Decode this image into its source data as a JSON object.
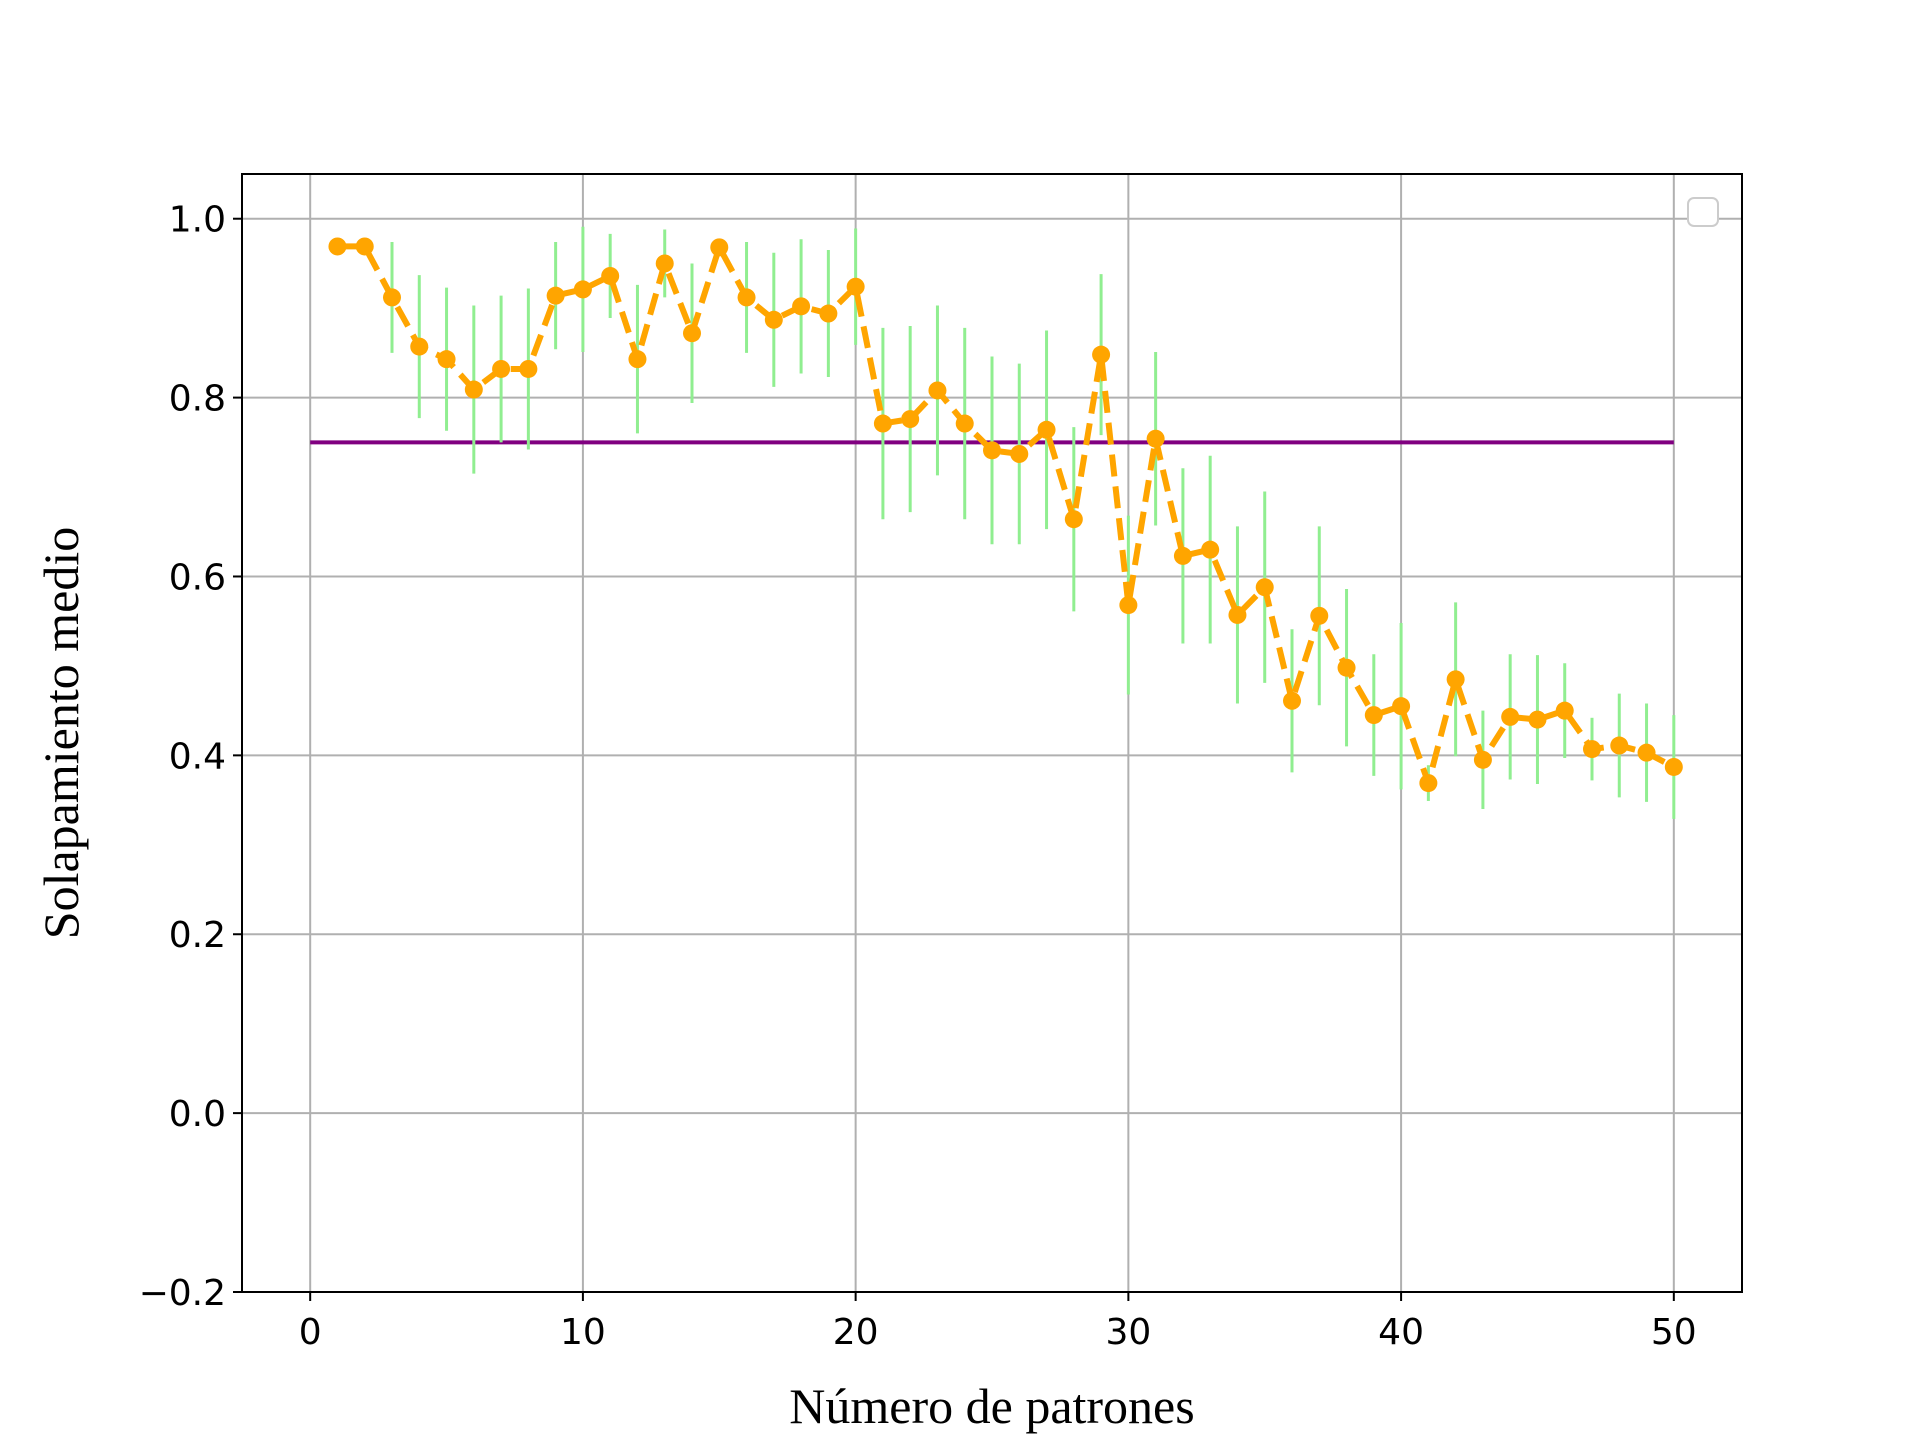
{
  "chart_data": {
    "type": "line",
    "title": "",
    "xlabel": "Número de patrones",
    "ylabel": "Solapamiento medio",
    "xlim": [
      -2.5,
      52.5
    ],
    "ylim": [
      -0.2,
      1.05
    ],
    "grid": true,
    "legend": {
      "placement": "top-right",
      "entries": []
    },
    "x_ticks": [
      0,
      10,
      20,
      30,
      40,
      50
    ],
    "x_tick_labels": [
      "0",
      "10",
      "20",
      "30",
      "40",
      "50"
    ],
    "y_ticks": [
      -0.2,
      0.0,
      0.2,
      0.4,
      0.6,
      0.8,
      1.0
    ],
    "y_tick_labels": [
      "−0.2",
      "0.0",
      "0.2",
      "0.4",
      "0.6",
      "0.8",
      "1.0"
    ],
    "colors": {
      "series": "#FFA500",
      "errorbars": "#90EE90",
      "reference": "#800080",
      "grid": "#b0b0b0"
    },
    "reference_line": {
      "y": 0.75,
      "x_start": 0,
      "x_end": 50
    },
    "series": [
      {
        "x": [
          1,
          2,
          3,
          4,
          5,
          6,
          7,
          8,
          9,
          10,
          11,
          12,
          13,
          14,
          15,
          16,
          17,
          18,
          19,
          20,
          21,
          22,
          23,
          24,
          25,
          26,
          27,
          28,
          29,
          30,
          31,
          32,
          33,
          34,
          35,
          36,
          37,
          38,
          39,
          40,
          41,
          42,
          43,
          44,
          45,
          46,
          47,
          48,
          49,
          50
        ],
        "y": [
          0.969,
          0.969,
          0.912,
          0.857,
          0.843,
          0.809,
          0.832,
          0.832,
          0.914,
          0.921,
          0.936,
          0.843,
          0.95,
          0.872,
          0.968,
          0.912,
          0.887,
          0.902,
          0.894,
          0.924,
          0.771,
          0.776,
          0.808,
          0.771,
          0.741,
          0.737,
          0.764,
          0.664,
          0.848,
          0.568,
          0.754,
          0.623,
          0.63,
          0.557,
          0.588,
          0.461,
          0.556,
          0.498,
          0.445,
          0.455,
          0.369,
          0.485,
          0.395,
          0.443,
          0.44,
          0.45,
          0.407,
          0.411,
          0.403,
          0.387
        ],
        "err": [
          0.0,
          0.0,
          0.062,
          0.08,
          0.08,
          0.094,
          0.082,
          0.09,
          0.06,
          0.07,
          0.047,
          0.083,
          0.038,
          0.078,
          0.0,
          0.062,
          0.075,
          0.075,
          0.071,
          0.065,
          0.107,
          0.104,
          0.095,
          0.107,
          0.105,
          0.101,
          0.111,
          0.103,
          0.09,
          0.1,
          0.097,
          0.098,
          0.105,
          0.099,
          0.107,
          0.08,
          0.1,
          0.088,
          0.068,
          0.093,
          0.02,
          0.086,
          0.055,
          0.07,
          0.072,
          0.053,
          0.035,
          0.058,
          0.055,
          0.058
        ]
      }
    ]
  }
}
